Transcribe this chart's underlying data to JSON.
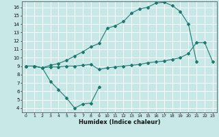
{
  "xlabel": "Humidex (Indice chaleur)",
  "background_color": "#c8e8e8",
  "grid_color": "#ffffff",
  "line_color": "#1a7a6e",
  "ylim": [
    3.5,
    16.7
  ],
  "xlim": [
    -0.5,
    23.5
  ],
  "line1_x": [
    0,
    1,
    2,
    3,
    4,
    5,
    6,
    7,
    8,
    9,
    10,
    11,
    12,
    13,
    14,
    15,
    16,
    17,
    18,
    19,
    20,
    21
  ],
  "line1_y": [
    9.0,
    9.0,
    8.8,
    9.1,
    9.3,
    9.7,
    10.2,
    10.7,
    11.3,
    11.7,
    13.5,
    13.8,
    14.3,
    15.3,
    15.8,
    16.0,
    16.5,
    16.6,
    16.2,
    15.5,
    14.0,
    9.5
  ],
  "line2_x": [
    0,
    1,
    2,
    3,
    4,
    5,
    6,
    7,
    8,
    9,
    10,
    11,
    12,
    13,
    14,
    15,
    16,
    17,
    18,
    19,
    20,
    21,
    22,
    23
  ],
  "line2_y": [
    9.0,
    9.0,
    8.8,
    8.9,
    8.9,
    9.0,
    9.0,
    9.1,
    9.2,
    8.6,
    8.8,
    8.9,
    9.0,
    9.1,
    9.2,
    9.4,
    9.5,
    9.6,
    9.8,
    10.0,
    10.5,
    11.8,
    11.8,
    9.5
  ],
  "line3_x": [
    0,
    1,
    2,
    3,
    4,
    5,
    6,
    7,
    8,
    9
  ],
  "line3_y": [
    9.0,
    9.0,
    8.8,
    7.2,
    6.2,
    5.2,
    4.0,
    4.5,
    4.6,
    6.5
  ],
  "yticks": [
    4,
    5,
    6,
    7,
    8,
    9,
    10,
    11,
    12,
    13,
    14,
    15,
    16
  ],
  "xticks": [
    0,
    1,
    2,
    3,
    4,
    5,
    6,
    7,
    8,
    9,
    10,
    11,
    12,
    13,
    14,
    15,
    16,
    17,
    18,
    19,
    20,
    21,
    22,
    23
  ]
}
